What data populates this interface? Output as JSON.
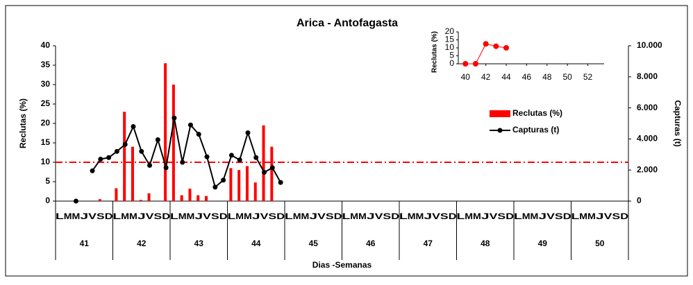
{
  "chart_data": [
    {
      "type": "combo",
      "title": "Arica - Antofagasta",
      "categories": [
        "L",
        "M",
        "M",
        "J",
        "V",
        "S",
        "D",
        "L",
        "M",
        "M",
        "J",
        "V",
        "S",
        "D",
        "L",
        "M",
        "M",
        "J",
        "V",
        "S",
        "D",
        "L",
        "M",
        "M",
        "J",
        "V",
        "S",
        "D",
        "L",
        "M",
        "M",
        "J",
        "V",
        "S",
        "D",
        "L",
        "M",
        "M",
        "J",
        "V",
        "S",
        "D",
        "L",
        "M",
        "M",
        "J",
        "V",
        "S",
        "D",
        "L",
        "M",
        "M",
        "J",
        "V",
        "S",
        "D",
        "L",
        "M",
        "M",
        "J",
        "V",
        "S",
        "D",
        "L",
        "M",
        "M",
        "J",
        "V",
        "S",
        "D"
      ],
      "week_labels": [
        "41",
        "42",
        "43",
        "44",
        "45",
        "46",
        "47",
        "48",
        "49",
        "50"
      ],
      "xlabel": "Dias -Semanas",
      "ylabel": "Reclutas (%)",
      "y2label": "Capturas (t)",
      "ylim": [
        0,
        40
      ],
      "yticks": [
        0,
        5,
        10,
        15,
        20,
        25,
        30,
        35,
        40
      ],
      "y2lim": [
        0,
        10000
      ],
      "y2ticks": [
        0,
        {
          "value": 2000,
          "label": "2.000"
        },
        {
          "value": 4000,
          "label": "4.000"
        },
        {
          "value": 6000,
          "label": "6.000"
        },
        {
          "value": 8000,
          "label": "8.000"
        },
        {
          "value": 10000,
          "label": "10.000"
        }
      ],
      "reference_line": 10,
      "reference_color": "#ff0000",
      "series": [
        {
          "name": "Reclutas (%)",
          "type": "bar",
          "color": "#ff0000",
          "values": [
            null,
            null,
            null,
            null,
            null,
            0.5,
            null,
            3.3,
            23,
            14,
            0.3,
            2,
            null,
            35.5,
            30,
            1.5,
            3.2,
            1.5,
            1.3,
            null,
            null,
            8.5,
            8,
            9,
            4.8,
            19.5,
            14,
            null,
            null,
            null,
            null,
            null,
            null,
            null,
            null,
            null,
            null,
            null,
            null,
            null,
            null,
            null,
            null,
            null,
            null,
            null,
            null,
            null,
            null,
            null,
            null,
            null,
            null,
            null,
            null,
            null,
            null,
            null,
            null,
            null,
            null,
            null,
            null,
            null,
            null,
            null,
            null,
            null,
            null,
            null
          ]
        },
        {
          "name": "Capturas (t)",
          "type": "line",
          "color": "#000000",
          "axis": "y2",
          "values": [
            null,
            null,
            0,
            null,
            1950,
            2700,
            2800,
            3200,
            3650,
            4800,
            3200,
            2300,
            3950,
            2150,
            5350,
            2500,
            4900,
            4300,
            2850,
            900,
            1350,
            2950,
            2650,
            4400,
            2800,
            1850,
            2150,
            1200,
            null,
            null,
            null,
            null,
            null,
            null,
            null,
            null,
            null,
            null,
            null,
            null,
            null,
            null,
            null,
            null,
            null,
            null,
            null,
            null,
            null,
            null,
            null,
            null,
            null,
            null,
            null,
            null,
            null,
            null,
            null,
            null,
            null,
            null,
            null,
            null,
            null,
            null,
            null,
            null,
            null,
            null
          ]
        }
      ]
    },
    {
      "type": "line",
      "ylabel": "Reclutas (%)",
      "color": "#ff0000",
      "x": [
        40,
        41,
        42,
        43,
        44
      ],
      "values": [
        0,
        0,
        12.5,
        11,
        10
      ],
      "xlim": [
        39.3,
        53.6
      ],
      "xticks": [
        40,
        42,
        44,
        46,
        48,
        50,
        52
      ],
      "ylim": [
        0,
        20
      ],
      "yticks": [
        0,
        5,
        10,
        15,
        20
      ]
    }
  ]
}
